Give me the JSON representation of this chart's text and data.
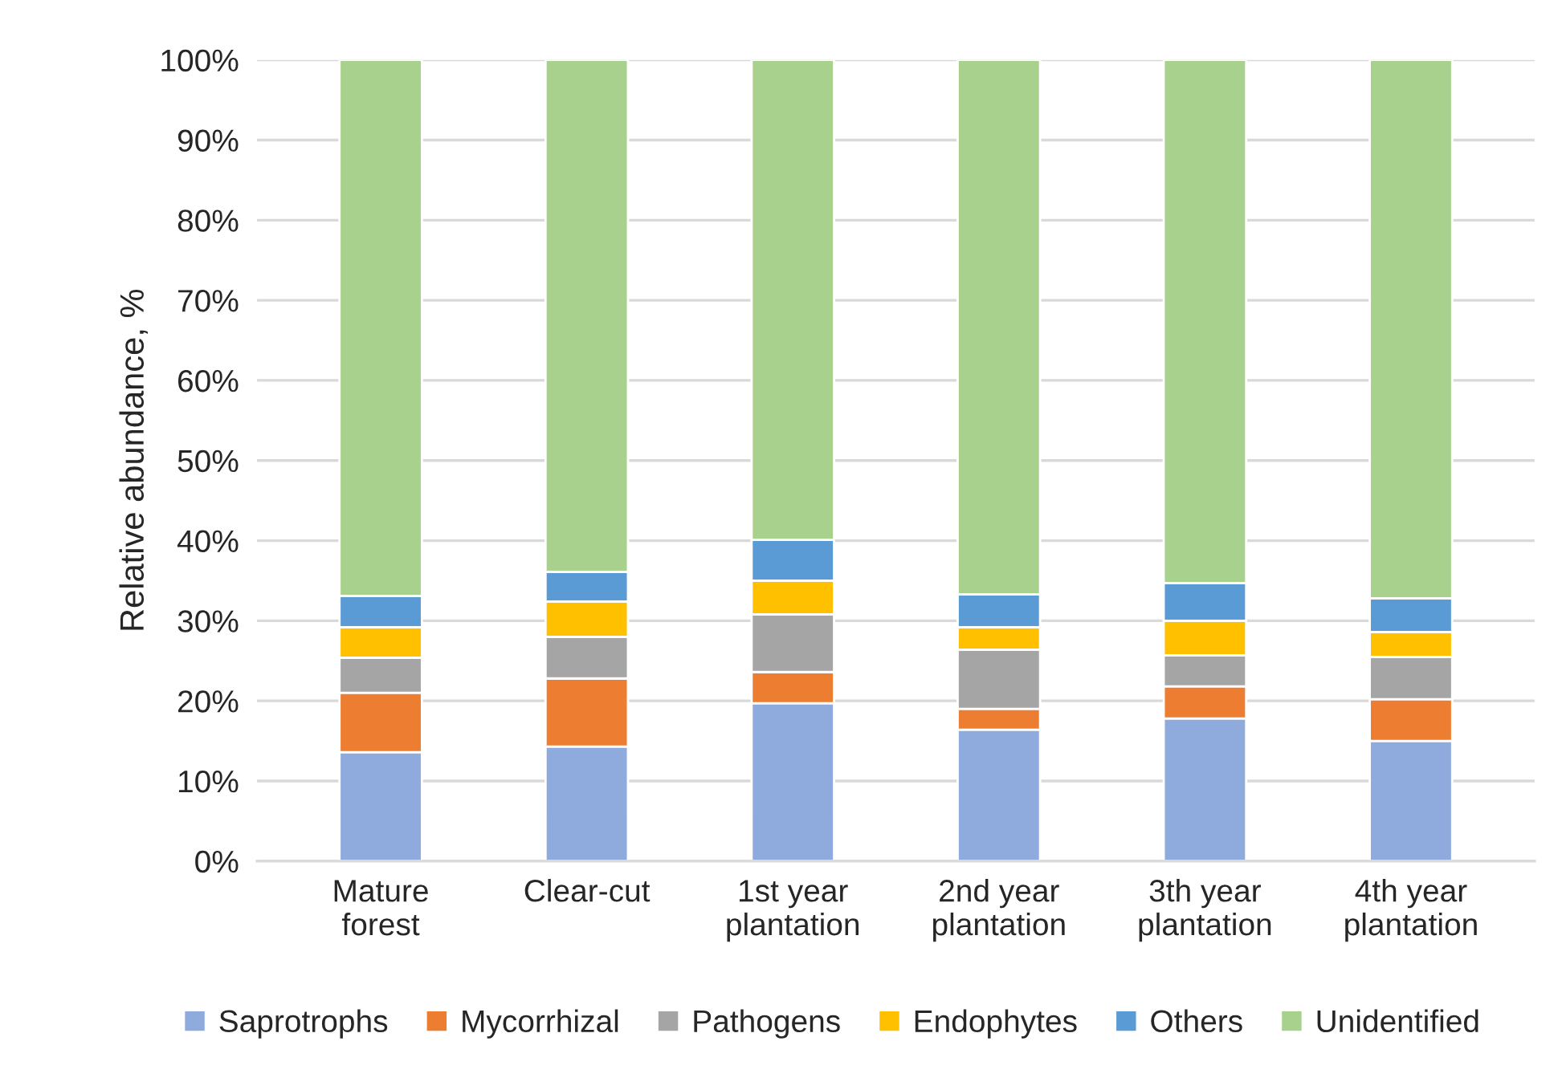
{
  "chart_data": {
    "type": "bar",
    "stacked": true,
    "ylabel": "Relative abundance, %",
    "categories": [
      "Mature\nforest",
      "Clear-cut",
      "1st year\nplantation",
      "2nd year\nplantation",
      "3th year\nplantation",
      "4th year\nplantation"
    ],
    "series": [
      {
        "name": "Saprotrophs",
        "color": "#8faadc",
        "values": [
          13.6,
          14.3,
          19.7,
          16.4,
          17.8,
          15.0
        ]
      },
      {
        "name": "Mycorrhizal",
        "color": "#ed7d31",
        "values": [
          7.4,
          8.5,
          3.9,
          2.6,
          4.0,
          5.2
        ]
      },
      {
        "name": "Pathogens",
        "color": "#a5a5a5",
        "values": [
          4.4,
          5.2,
          7.2,
          7.4,
          3.9,
          5.3
        ]
      },
      {
        "name": "Endophytes",
        "color": "#ffc000",
        "values": [
          3.8,
          4.4,
          4.2,
          2.8,
          4.3,
          3.1
        ]
      },
      {
        "name": "Others",
        "color": "#5b9bd5",
        "values": [
          3.9,
          3.7,
          5.1,
          4.1,
          4.7,
          4.2
        ]
      },
      {
        "name": "Unidentified",
        "color": "#a9d18e",
        "values": [
          66.9,
          63.9,
          59.9,
          66.7,
          65.3,
          67.2
        ]
      }
    ],
    "ylim": [
      0,
      100
    ],
    "yticks": [
      {
        "value": 0,
        "label": "0%"
      },
      {
        "value": 10,
        "label": "10%"
      },
      {
        "value": 20,
        "label": "20%"
      },
      {
        "value": 30,
        "label": "30%"
      },
      {
        "value": 40,
        "label": "40%"
      },
      {
        "value": 50,
        "label": "50%"
      },
      {
        "value": 60,
        "label": "60%"
      },
      {
        "value": 70,
        "label": "70%"
      },
      {
        "value": 80,
        "label": "80%"
      },
      {
        "value": 90,
        "label": "90%"
      },
      {
        "value": 100,
        "label": "100%"
      }
    ],
    "grid": "y",
    "legend": "bottom"
  }
}
